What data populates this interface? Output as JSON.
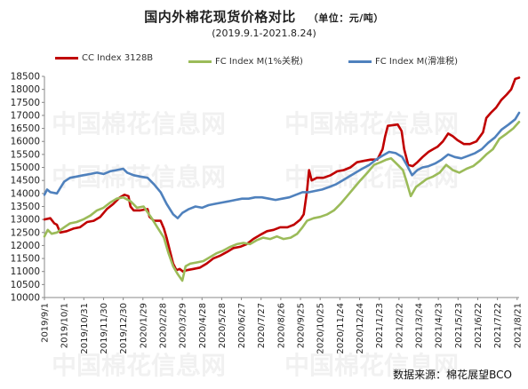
{
  "title": "国内外棉花现货价格对比",
  "unit": "（单位：元/吨）",
  "subtitle": "(2019.9.1-2021.8.24)",
  "source": "数据来源：棉花展望BCO",
  "watermark": "中国棉花信息网",
  "chart_data": {
    "type": "line",
    "ylim": [
      10000,
      18500
    ],
    "yticks": [
      10000,
      10500,
      11000,
      11500,
      12000,
      12500,
      13000,
      13500,
      14000,
      14500,
      15000,
      15500,
      16000,
      16500,
      17000,
      17500,
      18000,
      18500
    ],
    "xticks": [
      "2019/9/1",
      "2019/10/1",
      "2019/10/31",
      "2019/11/30",
      "2019/12/30",
      "2020/1/29",
      "2020/2/28",
      "2020/3/29",
      "2020/4/28",
      "2020/5/28",
      "2020/6/27",
      "2020/7/27",
      "2020/8/26",
      "2020/9/25",
      "2020/10/25",
      "2020/11/24",
      "2020/12/24",
      "2021/1/23",
      "2021/2/22",
      "2021/3/24",
      "2021/4/23",
      "2021/5/23",
      "2021/6/22",
      "2021/7/22",
      "2021/8/21"
    ],
    "xrange": [
      "2019-09-01",
      "2021-08-24"
    ],
    "grid": false,
    "legend_position": "top",
    "series": [
      {
        "name": "CC Index 3128B",
        "color": "#c00000",
        "points": [
          [
            "2019-09-01",
            13000
          ],
          [
            "2019-09-10",
            13050
          ],
          [
            "2019-09-16",
            12850
          ],
          [
            "2019-09-20",
            12800
          ],
          [
            "2019-09-25",
            12500
          ],
          [
            "2019-10-05",
            12550
          ],
          [
            "2019-10-15",
            12650
          ],
          [
            "2019-10-25",
            12700
          ],
          [
            "2019-11-05",
            12900
          ],
          [
            "2019-11-15",
            12950
          ],
          [
            "2019-11-25",
            13100
          ],
          [
            "2019-12-05",
            13400
          ],
          [
            "2019-12-15",
            13600
          ],
          [
            "2019-12-25",
            13850
          ],
          [
            "2020-01-01",
            13950
          ],
          [
            "2020-01-07",
            13900
          ],
          [
            "2020-01-10",
            13500
          ],
          [
            "2020-01-15",
            13350
          ],
          [
            "2020-01-25",
            13350
          ],
          [
            "2020-02-05",
            13400
          ],
          [
            "2020-02-08",
            13100
          ],
          [
            "2020-02-15",
            12950
          ],
          [
            "2020-02-25",
            12950
          ],
          [
            "2020-03-01",
            12650
          ],
          [
            "2020-03-05",
            12300
          ],
          [
            "2020-03-10",
            11800
          ],
          [
            "2020-03-15",
            11300
          ],
          [
            "2020-03-20",
            11050
          ],
          [
            "2020-03-25",
            11100
          ],
          [
            "2020-03-30",
            11000
          ],
          [
            "2020-04-05",
            11050
          ],
          [
            "2020-04-15",
            11100
          ],
          [
            "2020-04-25",
            11150
          ],
          [
            "2020-05-05",
            11300
          ],
          [
            "2020-05-15",
            11500
          ],
          [
            "2020-05-25",
            11600
          ],
          [
            "2020-06-05",
            11750
          ],
          [
            "2020-06-15",
            11900
          ],
          [
            "2020-06-25",
            11950
          ],
          [
            "2020-07-05",
            12050
          ],
          [
            "2020-07-15",
            12250
          ],
          [
            "2020-07-25",
            12400
          ],
          [
            "2020-08-05",
            12550
          ],
          [
            "2020-08-15",
            12600
          ],
          [
            "2020-08-25",
            12700
          ],
          [
            "2020-09-05",
            12700
          ],
          [
            "2020-09-15",
            12800
          ],
          [
            "2020-09-25",
            13000
          ],
          [
            "2020-09-30",
            13200
          ],
          [
            "2020-10-05",
            14100
          ],
          [
            "2020-10-08",
            14900
          ],
          [
            "2020-10-12",
            14500
          ],
          [
            "2020-10-20",
            14600
          ],
          [
            "2020-10-30",
            14600
          ],
          [
            "2020-11-10",
            14700
          ],
          [
            "2020-11-20",
            14850
          ],
          [
            "2020-11-30",
            14900
          ],
          [
            "2020-12-10",
            15000
          ],
          [
            "2020-12-20",
            15200
          ],
          [
            "2020-12-30",
            15250
          ],
          [
            "2021-01-10",
            15300
          ],
          [
            "2021-01-20",
            15300
          ],
          [
            "2021-01-28",
            15700
          ],
          [
            "2021-02-01",
            16200
          ],
          [
            "2021-02-05",
            16600
          ],
          [
            "2021-02-20",
            16650
          ],
          [
            "2021-02-26",
            16400
          ],
          [
            "2021-03-02",
            15700
          ],
          [
            "2021-03-08",
            15100
          ],
          [
            "2021-03-15",
            15050
          ],
          [
            "2021-03-22",
            15200
          ],
          [
            "2021-03-30",
            15400
          ],
          [
            "2021-04-08",
            15600
          ],
          [
            "2021-04-15",
            15700
          ],
          [
            "2021-04-22",
            15800
          ],
          [
            "2021-04-30",
            16000
          ],
          [
            "2021-05-08",
            16300
          ],
          [
            "2021-05-15",
            16200
          ],
          [
            "2021-05-22",
            16050
          ],
          [
            "2021-06-01",
            15900
          ],
          [
            "2021-06-10",
            15900
          ],
          [
            "2021-06-20",
            16000
          ],
          [
            "2021-06-30",
            16350
          ],
          [
            "2021-07-05",
            16900
          ],
          [
            "2021-07-12",
            17100
          ],
          [
            "2021-07-20",
            17300
          ],
          [
            "2021-07-28",
            17600
          ],
          [
            "2021-08-05",
            17800
          ],
          [
            "2021-08-12",
            18000
          ],
          [
            "2021-08-18",
            18400
          ],
          [
            "2021-08-24",
            18450
          ]
        ]
      },
      {
        "name": "FC Index M(1%关税)",
        "color": "#9bbb59",
        "points": [
          [
            "2019-09-01",
            12350
          ],
          [
            "2019-09-06",
            12600
          ],
          [
            "2019-09-12",
            12450
          ],
          [
            "2019-09-20",
            12500
          ],
          [
            "2019-10-01",
            12700
          ],
          [
            "2019-10-10",
            12850
          ],
          [
            "2019-10-20",
            12900
          ],
          [
            "2019-10-30",
            13000
          ],
          [
            "2019-11-10",
            13150
          ],
          [
            "2019-11-20",
            13350
          ],
          [
            "2019-11-30",
            13450
          ],
          [
            "2019-12-10",
            13650
          ],
          [
            "2019-12-20",
            13800
          ],
          [
            "2019-12-30",
            13850
          ],
          [
            "2020-01-10",
            13700
          ],
          [
            "2020-01-20",
            13450
          ],
          [
            "2020-01-30",
            13500
          ],
          [
            "2020-02-10",
            13100
          ],
          [
            "2020-02-20",
            12700
          ],
          [
            "2020-03-01",
            12300
          ],
          [
            "2020-03-08",
            11700
          ],
          [
            "2020-03-15",
            11200
          ],
          [
            "2020-03-22",
            10900
          ],
          [
            "2020-03-29",
            10650
          ],
          [
            "2020-04-03",
            11200
          ],
          [
            "2020-04-10",
            11300
          ],
          [
            "2020-04-20",
            11350
          ],
          [
            "2020-04-30",
            11400
          ],
          [
            "2020-05-10",
            11550
          ],
          [
            "2020-05-20",
            11700
          ],
          [
            "2020-05-30",
            11800
          ],
          [
            "2020-06-10",
            11950
          ],
          [
            "2020-06-20",
            12050
          ],
          [
            "2020-06-30",
            12100
          ],
          [
            "2020-07-10",
            12050
          ],
          [
            "2020-07-20",
            12200
          ],
          [
            "2020-07-30",
            12300
          ],
          [
            "2020-08-10",
            12250
          ],
          [
            "2020-08-20",
            12350
          ],
          [
            "2020-08-30",
            12250
          ],
          [
            "2020-09-10",
            12300
          ],
          [
            "2020-09-20",
            12450
          ],
          [
            "2020-09-28",
            12700
          ],
          [
            "2020-10-05",
            12950
          ],
          [
            "2020-10-15",
            13050
          ],
          [
            "2020-10-25",
            13100
          ],
          [
            "2020-11-05",
            13200
          ],
          [
            "2020-11-15",
            13350
          ],
          [
            "2020-11-25",
            13600
          ],
          [
            "2020-12-05",
            13900
          ],
          [
            "2020-12-15",
            14200
          ],
          [
            "2020-12-25",
            14500
          ],
          [
            "2021-01-05",
            14800
          ],
          [
            "2021-01-15",
            15100
          ],
          [
            "2021-01-25",
            15200
          ],
          [
            "2021-02-03",
            15300
          ],
          [
            "2021-02-10",
            15350
          ],
          [
            "2021-02-20",
            15100
          ],
          [
            "2021-02-28",
            14900
          ],
          [
            "2021-03-05",
            14500
          ],
          [
            "2021-03-12",
            13900
          ],
          [
            "2021-03-20",
            14250
          ],
          [
            "2021-03-28",
            14400
          ],
          [
            "2021-04-05",
            14550
          ],
          [
            "2021-04-15",
            14650
          ],
          [
            "2021-04-25",
            14800
          ],
          [
            "2021-05-05",
            15100
          ],
          [
            "2021-05-15",
            14900
          ],
          [
            "2021-05-25",
            14800
          ],
          [
            "2021-06-05",
            14950
          ],
          [
            "2021-06-15",
            15050
          ],
          [
            "2021-06-25",
            15250
          ],
          [
            "2021-07-05",
            15500
          ],
          [
            "2021-07-15",
            15700
          ],
          [
            "2021-07-25",
            16100
          ],
          [
            "2021-08-05",
            16300
          ],
          [
            "2021-08-15",
            16500
          ],
          [
            "2021-08-24",
            16750
          ]
        ]
      },
      {
        "name": "FC Index M(滑准税)",
        "color": "#4f81bd",
        "points": [
          [
            "2019-09-01",
            13950
          ],
          [
            "2019-09-05",
            14150
          ],
          [
            "2019-09-10",
            14050
          ],
          [
            "2019-09-20",
            14000
          ],
          [
            "2019-10-01",
            14450
          ],
          [
            "2019-10-10",
            14600
          ],
          [
            "2019-10-20",
            14650
          ],
          [
            "2019-10-30",
            14700
          ],
          [
            "2019-11-10",
            14750
          ],
          [
            "2019-11-20",
            14800
          ],
          [
            "2019-11-30",
            14750
          ],
          [
            "2019-12-10",
            14850
          ],
          [
            "2019-12-20",
            14900
          ],
          [
            "2019-12-30",
            14950
          ],
          [
            "2020-01-05",
            14800
          ],
          [
            "2020-01-15",
            14700
          ],
          [
            "2020-01-25",
            14650
          ],
          [
            "2020-02-05",
            14600
          ],
          [
            "2020-02-15",
            14350
          ],
          [
            "2020-02-25",
            14050
          ],
          [
            "2020-03-05",
            13600
          ],
          [
            "2020-03-15",
            13200
          ],
          [
            "2020-03-22",
            13050
          ],
          [
            "2020-03-29",
            13250
          ],
          [
            "2020-04-08",
            13400
          ],
          [
            "2020-04-18",
            13500
          ],
          [
            "2020-04-28",
            13450
          ],
          [
            "2020-05-08",
            13550
          ],
          [
            "2020-05-18",
            13600
          ],
          [
            "2020-05-28",
            13650
          ],
          [
            "2020-06-08",
            13700
          ],
          [
            "2020-06-18",
            13750
          ],
          [
            "2020-06-28",
            13800
          ],
          [
            "2020-07-08",
            13800
          ],
          [
            "2020-07-18",
            13850
          ],
          [
            "2020-07-28",
            13850
          ],
          [
            "2020-08-08",
            13800
          ],
          [
            "2020-08-18",
            13750
          ],
          [
            "2020-08-28",
            13800
          ],
          [
            "2020-09-08",
            13850
          ],
          [
            "2020-09-18",
            13950
          ],
          [
            "2020-09-28",
            14050
          ],
          [
            "2020-10-08",
            14050
          ],
          [
            "2020-10-18",
            14100
          ],
          [
            "2020-10-28",
            14150
          ],
          [
            "2020-11-08",
            14250
          ],
          [
            "2020-11-18",
            14350
          ],
          [
            "2020-11-28",
            14500
          ],
          [
            "2020-12-08",
            14650
          ],
          [
            "2020-12-18",
            14800
          ],
          [
            "2020-12-28",
            14950
          ],
          [
            "2021-01-08",
            15100
          ],
          [
            "2021-01-18",
            15300
          ],
          [
            "2021-01-28",
            15450
          ],
          [
            "2021-02-07",
            15600
          ],
          [
            "2021-02-17",
            15550
          ],
          [
            "2021-02-27",
            15400
          ],
          [
            "2021-03-07",
            15050
          ],
          [
            "2021-03-14",
            14700
          ],
          [
            "2021-03-22",
            14900
          ],
          [
            "2021-03-30",
            15000
          ],
          [
            "2021-04-08",
            15050
          ],
          [
            "2021-04-18",
            15150
          ],
          [
            "2021-04-28",
            15300
          ],
          [
            "2021-05-08",
            15500
          ],
          [
            "2021-05-18",
            15400
          ],
          [
            "2021-05-28",
            15350
          ],
          [
            "2021-06-08",
            15450
          ],
          [
            "2021-06-18",
            15550
          ],
          [
            "2021-06-28",
            15700
          ],
          [
            "2021-07-08",
            15950
          ],
          [
            "2021-07-18",
            16150
          ],
          [
            "2021-07-28",
            16450
          ],
          [
            "2021-08-08",
            16650
          ],
          [
            "2021-08-18",
            16850
          ],
          [
            "2021-08-24",
            17100
          ]
        ]
      }
    ]
  }
}
